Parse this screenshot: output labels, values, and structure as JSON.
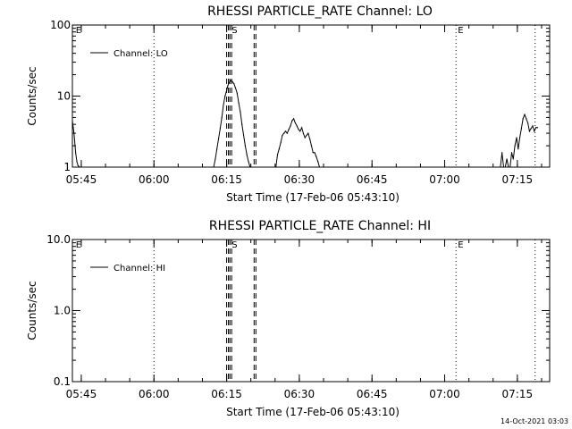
{
  "footer": {
    "date": "14-Oct-2021 03:03"
  },
  "chart_data": [
    {
      "type": "line",
      "title": "RHESSI PARTICLE_RATE Channel: LO",
      "xlabel": "Start Time (17-Feb-06 05:43:10)",
      "ylabel": "Counts/sec",
      "yscale": "log",
      "ylim": [
        1,
        100
      ],
      "xlim": [
        "05:43:10",
        "07:21:40"
      ],
      "x_ticks": [
        "05:45",
        "06:00",
        "06:15",
        "06:30",
        "06:45",
        "07:00",
        "07:15"
      ],
      "y_ticks": [
        "1",
        "10",
        "100"
      ],
      "legend": {
        "position": "top-left",
        "entries": [
          "Channel: LO"
        ]
      },
      "series": [
        {
          "name": "Channel: LO",
          "x": [
            "05:43:10",
            "05:43:30",
            "05:43:50",
            "05:44:05",
            "05:44:20",
            "05:44:40",
            "05:45:00",
            "06:12:20",
            "06:12:40",
            "06:13:00",
            "06:13:20",
            "06:13:40",
            "06:14:00",
            "06:14:20",
            "06:14:40",
            "06:15:00",
            "06:15:15",
            "06:15:30",
            "06:15:50",
            "06:16:10",
            "06:16:30",
            "06:16:50",
            "06:17:10",
            "06:17:30",
            "06:17:50",
            "06:18:10",
            "06:18:30",
            "06:18:50",
            "06:19:10",
            "06:19:30",
            "06:19:50",
            "06:20:10",
            "06:25:10",
            "06:25:30",
            "06:25:50",
            "06:26:10",
            "06:26:30",
            "06:26:50",
            "06:27:10",
            "06:27:30",
            "06:27:50",
            "06:28:10",
            "06:28:30",
            "06:28:50",
            "06:29:10",
            "06:29:30",
            "06:29:50",
            "06:30:10",
            "06:30:30",
            "06:30:50",
            "06:31:10",
            "06:31:30",
            "06:31:50",
            "06:32:10",
            "06:32:30",
            "06:32:50",
            "06:33:10",
            "06:33:30",
            "06:33:50",
            "06:34:10",
            "07:11:10",
            "07:11:30",
            "07:11:50",
            "07:12:10",
            "07:12:30",
            "07:12:50",
            "07:13:10",
            "07:13:30",
            "07:13:50",
            "07:14:10",
            "07:14:30",
            "07:14:50",
            "07:15:10",
            "07:15:30",
            "07:15:50",
            "07:16:10",
            "07:16:30",
            "07:16:50",
            "07:17:10",
            "07:17:30",
            "07:17:50",
            "07:18:10",
            "07:18:30",
            "07:18:50",
            "07:19:10"
          ],
          "y": [
            4.5,
            3.0,
            1.6,
            1.2,
            1.05,
            1.0,
            1.0,
            1.0,
            1.3,
            1.8,
            2.5,
            3.5,
            5.0,
            7.5,
            10.0,
            12.0,
            14.0,
            15.5,
            16.5,
            16.0,
            15.0,
            13.0,
            11.0,
            8.0,
            6.0,
            4.0,
            2.8,
            2.0,
            1.5,
            1.2,
            1.0,
            1.0,
            1.0,
            1.5,
            1.8,
            2.2,
            2.8,
            3.0,
            3.2,
            3.0,
            3.4,
            3.8,
            4.5,
            4.8,
            4.2,
            3.8,
            3.4,
            3.2,
            3.6,
            3.0,
            2.6,
            2.8,
            3.0,
            2.5,
            2.0,
            1.6,
            1.6,
            1.4,
            1.2,
            1.0,
            1.0,
            1.0,
            1.6,
            1.0,
            1.0,
            1.3,
            1.0,
            1.0,
            1.6,
            1.3,
            2.0,
            2.6,
            1.8,
            2.6,
            3.5,
            4.8,
            5.5,
            4.8,
            4.2,
            3.2,
            3.5,
            3.8,
            3.2,
            3.6,
            3.6
          ]
        }
      ],
      "markers": [
        {
          "label": "E",
          "time": "05:43:30",
          "style": "text"
        },
        {
          "label": "E",
          "time": "07:02:20",
          "style": "dotted"
        },
        {
          "label": "",
          "time": "06:00:00",
          "style": "dotted"
        },
        {
          "label": "",
          "time": "07:18:40",
          "style": "dotted"
        },
        {
          "label": "S",
          "time": "06:15:40",
          "style": "dashed"
        },
        {
          "label": "",
          "time": "06:15:00",
          "style": "dashed"
        },
        {
          "label": "",
          "time": "06:20:40",
          "style": "dashed"
        }
      ],
      "grid": false
    },
    {
      "type": "line",
      "title": "RHESSI PARTICLE_RATE Channel: HI",
      "xlabel": "Start Time (17-Feb-06 05:43:10)",
      "ylabel": "Counts/sec",
      "yscale": "log",
      "ylim": [
        0.1,
        10.0
      ],
      "xlim": [
        "05:43:10",
        "07:21:40"
      ],
      "x_ticks": [
        "05:45",
        "06:00",
        "06:15",
        "06:30",
        "06:45",
        "07:00",
        "07:15"
      ],
      "y_ticks": [
        "0.1",
        "1.0",
        "10.0"
      ],
      "legend": {
        "position": "top-left",
        "entries": [
          "Channel: HI"
        ]
      },
      "series": [
        {
          "name": "Channel: HI",
          "x": [],
          "y": []
        }
      ],
      "markers": [
        {
          "label": "E",
          "time": "05:43:30",
          "style": "text"
        },
        {
          "label": "E",
          "time": "07:02:20",
          "style": "dotted"
        },
        {
          "label": "",
          "time": "06:00:00",
          "style": "dotted"
        },
        {
          "label": "",
          "time": "07:18:40",
          "style": "dotted"
        },
        {
          "label": "S",
          "time": "06:15:40",
          "style": "dashed"
        },
        {
          "label": "",
          "time": "06:15:00",
          "style": "dashed"
        },
        {
          "label": "",
          "time": "06:20:40",
          "style": "dashed"
        }
      ],
      "grid": false
    }
  ]
}
